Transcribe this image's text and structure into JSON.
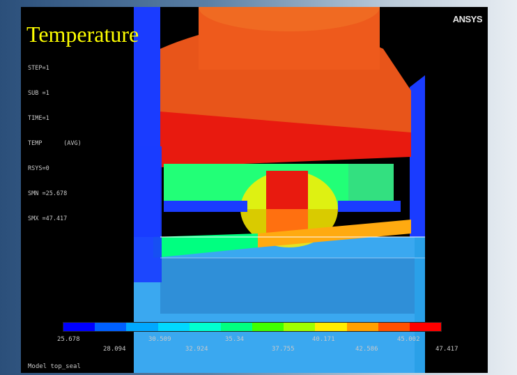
{
  "title": "Temperature",
  "brand": "ANSYS",
  "info_lines": [
    "STEP=1",
    "SUB =1",
    "TIME=1",
    "TEMP      (AVG)",
    "RSYS=0",
    "SMN =25.678",
    "SMX =47.417"
  ],
  "legend": {
    "colors": [
      "#0000ff",
      "#0060ff",
      "#00a8ff",
      "#00d8ff",
      "#00ffd0",
      "#00ff80",
      "#40ff00",
      "#a0ff00",
      "#ffee00",
      "#ffa000",
      "#ff5000",
      "#ff0000"
    ],
    "ticks_top": [
      "25.678",
      "30.509",
      "35.34",
      "40.171",
      "45.002"
    ],
    "ticks_bottom": [
      "28.094",
      "32.924",
      "37.755",
      "42.586",
      "47.417"
    ]
  },
  "caption": "Model top_seal",
  "colors": {
    "title": "#ffff00",
    "background": "#000000",
    "hot": "#e81a0f",
    "cool": "#1a3cff"
  }
}
